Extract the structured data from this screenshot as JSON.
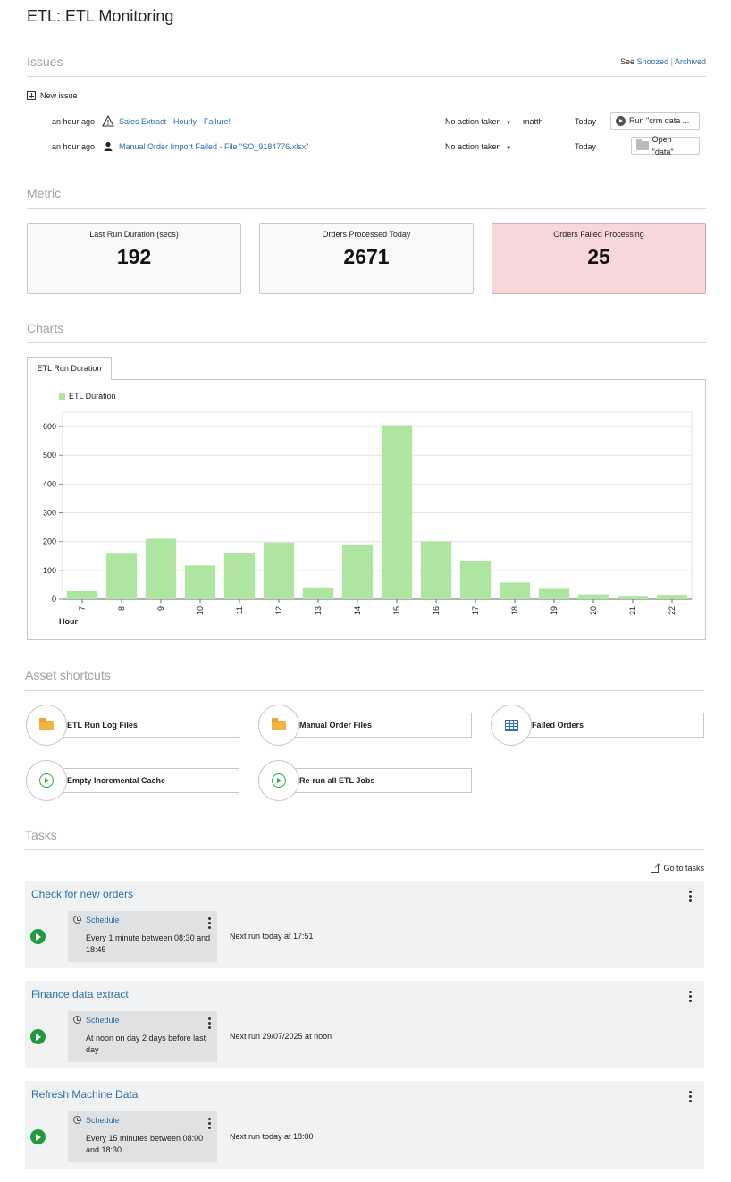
{
  "page_title": "ETL: ETL Monitoring",
  "issues": {
    "title": "Issues",
    "see_prefix": "See",
    "snoozed": "Snoozed",
    "separator": "|",
    "archived": "Archived",
    "new_issue": "New issue",
    "rows": [
      {
        "age": "an hour ago",
        "icon": "warning-icon",
        "name": "Sales Extract - Hourly - Failure!",
        "status": "No action taken",
        "user": "matth",
        "date": "Today",
        "action": "Run \"crm data ..."
      },
      {
        "age": "an hour ago",
        "icon": "user-icon",
        "name": "Manual Order Import Failed - File \"SO_9184776.xlsx\"",
        "status": "No action taken",
        "user": "",
        "date": "Today",
        "action": "Open \"data\""
      }
    ]
  },
  "metric": {
    "title": "Metric",
    "cards": [
      {
        "label": "Last Run Duration (secs)",
        "value": "192"
      },
      {
        "label": "Orders Processed Today",
        "value": "2671"
      },
      {
        "label": "Orders Failed Processing",
        "value": "25"
      }
    ]
  },
  "charts": {
    "title": "Charts",
    "tab": "ETL Run Duration"
  },
  "chart_data": {
    "type": "bar",
    "categories": [
      "7",
      "8",
      "9",
      "10",
      "11",
      "12",
      "13",
      "14",
      "15",
      "16",
      "17",
      "18",
      "19",
      "20",
      "21",
      "22"
    ],
    "series": [
      {
        "name": "ETL Duration",
        "color": "#aee5a1",
        "values": [
          28,
          158,
          210,
          117,
          160,
          197,
          38,
          190,
          605,
          201,
          131,
          58,
          36,
          17,
          9,
          12
        ]
      }
    ],
    "xlabel": "Hour",
    "ylabel": "",
    "ylim": [
      0,
      650
    ],
    "yticks": [
      0,
      100,
      200,
      300,
      400,
      500,
      600
    ],
    "grid": true,
    "legend": "top-left"
  },
  "shortcuts": {
    "title": "Asset shortcuts",
    "items": [
      {
        "label": "ETL Run Log Files",
        "icon": "folder-icon"
      },
      {
        "label": "Manual Order Files",
        "icon": "folder-icon"
      },
      {
        "label": "Failed Orders",
        "icon": "table-icon"
      },
      {
        "label": "Empty Incremental Cache",
        "icon": "play-icon"
      },
      {
        "label": "Re-run all ETL Jobs",
        "icon": "play-icon"
      }
    ]
  },
  "tasks": {
    "title": "Tasks",
    "go_to_tasks": "Go to tasks",
    "items": [
      {
        "name": "Check for new orders",
        "schedule_label": "Schedule",
        "schedule": "Every 1 minute between 08:30 and 18:45",
        "next_run": "Next run today at 17:51"
      },
      {
        "name": "Finance data extract",
        "schedule_label": "Schedule",
        "schedule": "At noon on day 2 days before last day",
        "next_run": "Next run 29/07/2025 at noon"
      },
      {
        "name": "Refresh Machine Data",
        "schedule_label": "Schedule",
        "schedule": "Every 15 minutes between 08:00 and 18:30",
        "next_run": "Next run today at 18:00"
      }
    ]
  }
}
